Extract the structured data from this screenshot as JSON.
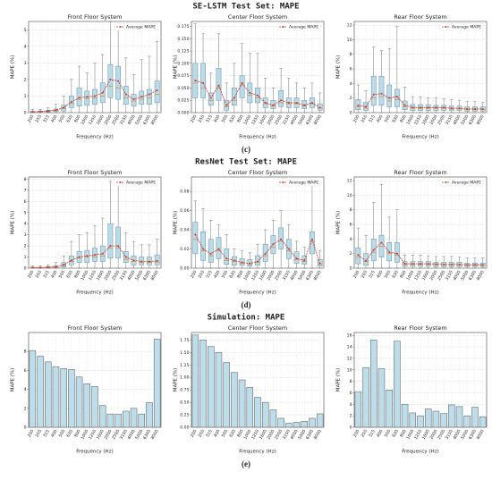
{
  "figure": {
    "rows": [
      {
        "title": "SE-LSTM Test Set: MAPE",
        "caption": "(c)"
      },
      {
        "title": "ResNet Test Set: MAPE",
        "caption": "(d)"
      },
      {
        "title": "Simulation: MAPE",
        "caption": "(e)"
      }
    ]
  },
  "chart_data": [
    {
      "type": "box",
      "title": "Front Floor System",
      "xlabel": "Frequency (Hz)",
      "ylabel": "MAPE (%)",
      "grid": true,
      "legend": "upper right",
      "box_color": "#b9dcea",
      "median_color": "#d9822b",
      "categories": [
        "200",
        "250",
        "315",
        "400",
        "500",
        "630",
        "800",
        "1000",
        "1250",
        "1600",
        "2000",
        "2500",
        "3150",
        "4000",
        "5000",
        "6300",
        "8000"
      ],
      "ylim": [
        0,
        5.5
      ],
      "yticks": [
        0,
        1,
        2,
        3,
        4,
        5
      ],
      "boxes": {
        "low": [
          0,
          0,
          0,
          0,
          0,
          0,
          0,
          0,
          0,
          0,
          0,
          0,
          0,
          0,
          0,
          0,
          0
        ],
        "q1": [
          0.02,
          0.02,
          0.04,
          0.06,
          0.1,
          0.3,
          0.4,
          0.45,
          0.5,
          0.6,
          0.9,
          0.8,
          0.5,
          0.4,
          0.5,
          0.5,
          0.6
        ],
        "median": [
          0.04,
          0.05,
          0.08,
          0.12,
          0.25,
          0.55,
          0.8,
          0.85,
          0.9,
          1.0,
          1.6,
          1.5,
          0.9,
          0.7,
          0.8,
          0.9,
          1.1
        ],
        "q3": [
          0.08,
          0.09,
          0.15,
          0.22,
          0.45,
          1.0,
          1.5,
          1.3,
          1.4,
          1.8,
          2.9,
          2.8,
          1.6,
          1.1,
          1.3,
          1.4,
          1.9
        ],
        "high": [
          0.2,
          0.2,
          0.3,
          0.5,
          1.0,
          2.0,
          2.8,
          2.4,
          3.0,
          3.5,
          5.5,
          5.2,
          3.3,
          2.3,
          3.2,
          3.4,
          4.3
        ]
      },
      "average": {
        "name": "Average MAPE",
        "color": "#c8372d",
        "values": [
          0.05,
          0.06,
          0.1,
          0.15,
          0.3,
          0.65,
          0.9,
          0.95,
          1.0,
          1.2,
          2.0,
          1.9,
          1.1,
          0.8,
          0.95,
          1.1,
          1.35
        ]
      }
    },
    {
      "type": "box",
      "title": "Center Floor System",
      "xlabel": "Frequency (Hz)",
      "ylabel": "MAPE (%)",
      "grid": true,
      "legend": "upper right",
      "box_color": "#b9dcea",
      "median_color": "#d9822b",
      "categories": [
        "200",
        "250",
        "315",
        "400",
        "500",
        "630",
        "800",
        "1000",
        "1250",
        "1600",
        "2000",
        "2500",
        "3150",
        "4000",
        "5000",
        "6300",
        "8000"
      ],
      "ylim": [
        0,
        0.185
      ],
      "yticks": [
        {
          "value": 0,
          "label": "0.000"
        },
        0.025,
        {
          "value": 0.05,
          "label": "0.050"
        },
        0.075,
        {
          "value": 0.1,
          "label": "0.100"
        },
        0.125,
        {
          "value": 0.15,
          "label": "0.150"
        },
        0.175
      ],
      "boxes": {
        "low": [
          0,
          0,
          0,
          0,
          0,
          0,
          0,
          0,
          0,
          0,
          0,
          0,
          0,
          0,
          0,
          0,
          0
        ],
        "q1": [
          0.03,
          0.03,
          0.015,
          0.025,
          0.005,
          0.015,
          0.03,
          0.02,
          0.02,
          0.01,
          0.008,
          0.012,
          0.01,
          0.01,
          0.008,
          0.01,
          0.005
        ],
        "median": [
          0.06,
          0.05,
          0.025,
          0.05,
          0.012,
          0.025,
          0.055,
          0.035,
          0.03,
          0.018,
          0.013,
          0.02,
          0.018,
          0.018,
          0.013,
          0.018,
          0.009
        ],
        "q3": [
          0.1,
          0.1,
          0.04,
          0.09,
          0.025,
          0.05,
          0.075,
          0.06,
          0.05,
          0.03,
          0.025,
          0.045,
          0.03,
          0.03,
          0.025,
          0.03,
          0.018
        ],
        "high": [
          0.18,
          0.16,
          0.08,
          0.16,
          0.06,
          0.1,
          0.14,
          0.12,
          0.12,
          0.07,
          0.05,
          0.09,
          0.07,
          0.06,
          0.05,
          0.06,
          0.04
        ]
      },
      "average": {
        "name": "Average MAPE",
        "color": "#c8372d",
        "values": [
          0.065,
          0.06,
          0.03,
          0.055,
          0.015,
          0.03,
          0.06,
          0.04,
          0.035,
          0.02,
          0.015,
          0.025,
          0.02,
          0.02,
          0.015,
          0.02,
          0.01
        ]
      }
    },
    {
      "type": "box",
      "title": "Rear Floor System",
      "xlabel": "Frequency (Hz)",
      "ylabel": "MAPE (%)",
      "grid": true,
      "legend": "upper right",
      "box_color": "#b9dcea",
      "median_color": "#d9822b",
      "categories": [
        "200",
        "250",
        "315",
        "400",
        "500",
        "630",
        "800",
        "1000",
        "1250",
        "1600",
        "2000",
        "2500",
        "3150",
        "4000",
        "5000",
        "6300",
        "8000"
      ],
      "ylim": [
        0,
        12.5
      ],
      "yticks": [
        0,
        2,
        4,
        6,
        8,
        10,
        12
      ],
      "boxes": {
        "low": [
          0,
          0,
          0,
          0,
          0,
          0,
          0,
          0,
          0,
          0,
          0,
          0,
          0,
          0,
          0,
          0,
          0
        ],
        "q1": [
          0.4,
          0.3,
          1.0,
          1.0,
          0.8,
          0.8,
          0.4,
          0.3,
          0.3,
          0.3,
          0.3,
          0.3,
          0.3,
          0.3,
          0.2,
          0.2,
          0.2
        ],
        "median": [
          0.8,
          0.6,
          2.0,
          2.2,
          1.6,
          1.8,
          0.8,
          0.6,
          0.6,
          0.6,
          0.6,
          0.6,
          0.5,
          0.5,
          0.4,
          0.4,
          0.4
        ],
        "q3": [
          1.8,
          1.4,
          5.0,
          5.0,
          3.8,
          3.2,
          1.6,
          1.1,
          1.1,
          1.1,
          1.0,
          1.0,
          0.9,
          0.9,
          0.8,
          0.8,
          0.8
        ],
        "high": [
          3.8,
          3.0,
          9.0,
          8.5,
          8.8,
          11.8,
          3.5,
          2.2,
          2.2,
          2.0,
          2.0,
          1.9,
          1.8,
          1.7,
          1.5,
          1.5,
          1.4
        ]
      },
      "average": {
        "name": "Average MAPE",
        "color": "#c8372d",
        "values": [
          1.0,
          0.8,
          2.5,
          2.6,
          2.0,
          2.2,
          1.0,
          0.7,
          0.7,
          0.7,
          0.7,
          0.7,
          0.6,
          0.6,
          0.5,
          0.5,
          0.5
        ]
      }
    },
    {
      "type": "box",
      "title": "Front Floor System",
      "xlabel": "Frequency (Hz)",
      "ylabel": "MAPE (%)",
      "grid": true,
      "legend": "upper right",
      "box_color": "#b9dcea",
      "median_color": "#d9822b",
      "categories": [
        "200",
        "250",
        "315",
        "400",
        "500",
        "630",
        "800",
        "1000",
        "1250",
        "1600",
        "2000",
        "2500",
        "3150",
        "4000",
        "5000",
        "6300",
        "8000"
      ],
      "ylim": [
        0,
        8.2
      ],
      "yticks": [
        0,
        1,
        2,
        3,
        4,
        5,
        6,
        7,
        8
      ],
      "boxes": {
        "low": [
          0,
          0,
          0,
          0,
          0,
          0,
          0,
          0,
          0,
          0,
          0,
          0,
          0,
          0,
          0,
          0,
          0
        ],
        "q1": [
          0.02,
          0.02,
          0.03,
          0.05,
          0.1,
          0.3,
          0.5,
          0.5,
          0.6,
          0.6,
          0.9,
          0.9,
          0.5,
          0.3,
          0.3,
          0.3,
          0.3
        ],
        "median": [
          0.04,
          0.04,
          0.07,
          0.1,
          0.25,
          0.6,
          0.9,
          1.0,
          1.0,
          1.1,
          1.8,
          1.8,
          0.8,
          0.6,
          0.5,
          0.5,
          0.55
        ],
        "q3": [
          0.08,
          0.08,
          0.13,
          0.2,
          0.5,
          1.1,
          1.5,
          1.6,
          1.8,
          2.0,
          4.0,
          3.7,
          1.5,
          1.1,
          1.0,
          1.0,
          1.2
        ],
        "high": [
          0.2,
          0.2,
          0.3,
          0.5,
          1.1,
          2.4,
          3.0,
          3.2,
          3.8,
          4.5,
          7.8,
          7.5,
          3.2,
          2.4,
          2.1,
          2.1,
          2.6
        ]
      },
      "average": {
        "name": "Average MAPE",
        "color": "#c8372d",
        "values": [
          0.05,
          0.05,
          0.08,
          0.12,
          0.3,
          0.7,
          1.0,
          1.1,
          1.2,
          1.3,
          2.0,
          2.0,
          1.0,
          0.7,
          0.6,
          0.6,
          0.65
        ]
      }
    },
    {
      "type": "box",
      "title": "Center Floor System",
      "xlabel": "Frequency (Hz)",
      "ylabel": "MAPE (%)",
      "grid": true,
      "legend": "upper right",
      "box_color": "#b9dcea",
      "median_color": "#d9822b",
      "categories": [
        "200",
        "250",
        "315",
        "400",
        "500",
        "630",
        "800",
        "1000",
        "1250",
        "1600",
        "2000",
        "2500",
        "3150",
        "4000",
        "5000",
        "6300",
        "8000"
      ],
      "ylim": [
        0,
        0.095
      ],
      "yticks": [
        {
          "value": 0,
          "label": "0.00"
        },
        0.02,
        0.04,
        0.06,
        0.08
      ],
      "boxes": {
        "low": [
          0,
          0,
          0,
          0,
          0,
          0,
          0,
          0,
          0,
          0,
          0,
          0,
          0,
          0,
          0,
          0,
          0
        ],
        "q1": [
          0.015,
          0.008,
          0.006,
          0.01,
          0.004,
          0.003,
          0.003,
          0.002,
          0.003,
          0.007,
          0.015,
          0.02,
          0.01,
          0.005,
          0.004,
          0.015,
          0.002
        ],
        "median": [
          0.03,
          0.018,
          0.013,
          0.018,
          0.008,
          0.007,
          0.005,
          0.004,
          0.006,
          0.013,
          0.022,
          0.028,
          0.018,
          0.009,
          0.007,
          0.028,
          0.004
        ],
        "q3": [
          0.048,
          0.038,
          0.03,
          0.032,
          0.02,
          0.012,
          0.01,
          0.009,
          0.013,
          0.025,
          0.034,
          0.042,
          0.03,
          0.017,
          0.013,
          0.038,
          0.009
        ],
        "high": [
          0.07,
          0.062,
          0.05,
          0.045,
          0.035,
          0.02,
          0.018,
          0.016,
          0.025,
          0.04,
          0.05,
          0.06,
          0.045,
          0.028,
          0.022,
          0.09,
          0.018
        ]
      },
      "average": {
        "name": "Average MAPE",
        "color": "#c8372d",
        "values": [
          0.035,
          0.02,
          0.015,
          0.02,
          0.01,
          0.008,
          0.006,
          0.005,
          0.007,
          0.015,
          0.025,
          0.03,
          0.02,
          0.01,
          0.008,
          0.03,
          0.005
        ]
      }
    },
    {
      "type": "box",
      "title": "Rear Floor System",
      "xlabel": "Frequency (Hz)",
      "ylabel": "MAPE (%)",
      "grid": true,
      "legend": "upper right",
      "box_color": "#b9dcea",
      "median_color": "#d9822b",
      "categories": [
        "200",
        "250",
        "315",
        "400",
        "500",
        "630",
        "800",
        "1000",
        "1250",
        "1600",
        "2000",
        "2500",
        "3150",
        "4000",
        "5000",
        "6300",
        "8000"
      ],
      "ylim": [
        0,
        12.5
      ],
      "yticks": [
        0,
        2,
        4,
        6,
        8,
        10,
        12
      ],
      "boxes": {
        "low": [
          0,
          0,
          0,
          0,
          0,
          0,
          0,
          0,
          0,
          0,
          0,
          0,
          0,
          0,
          0,
          0,
          0
        ],
        "q1": [
          0.6,
          0.4,
          1.0,
          1.5,
          1.0,
          0.8,
          0.25,
          0.25,
          0.25,
          0.25,
          0.2,
          0.2,
          0.2,
          0.2,
          0.2,
          0.2,
          0.2
        ],
        "median": [
          1.5,
          0.9,
          2.2,
          3.0,
          2.0,
          1.8,
          0.5,
          0.5,
          0.5,
          0.5,
          0.45,
          0.45,
          0.45,
          0.4,
          0.4,
          0.4,
          0.4
        ],
        "q3": [
          2.8,
          2.0,
          4.0,
          4.5,
          3.5,
          3.5,
          0.9,
          0.9,
          0.9,
          0.9,
          0.8,
          0.8,
          0.8,
          0.8,
          0.7,
          0.7,
          0.7
        ],
        "high": [
          5.5,
          4.5,
          9.0,
          11.5,
          7.0,
          8.0,
          1.8,
          1.8,
          1.8,
          1.7,
          1.6,
          1.6,
          1.6,
          1.5,
          1.4,
          1.4,
          1.4
        ]
      },
      "average": {
        "name": "Average MAPE",
        "color": "#c8372d",
        "values": [
          1.8,
          1.0,
          2.5,
          3.5,
          2.2,
          2.0,
          0.6,
          0.6,
          0.6,
          0.6,
          0.55,
          0.5,
          0.5,
          0.5,
          0.45,
          0.45,
          0.45
        ]
      }
    },
    {
      "type": "bar",
      "title": "Front Floor System",
      "xlabel": "Frequency (Hz)",
      "ylabel": "MAPE (%)",
      "grid": true,
      "color": "#bcdde9",
      "categories": [
        "200",
        "250",
        "315",
        "400",
        "500",
        "630",
        "800",
        "1000",
        "1250",
        "1600",
        "2000",
        "2500",
        "3150",
        "4000",
        "5000",
        "6300",
        "8000"
      ],
      "ylim": [
        0,
        10
      ],
      "yticks": [
        0,
        2,
        4,
        6,
        8
      ],
      "values": [
        8.1,
        7.5,
        6.9,
        6.4,
        6.2,
        6.1,
        5.3,
        4.6,
        4.3,
        2.3,
        1.4,
        1.4,
        1.7,
        2.0,
        1.4,
        2.6,
        9.3
      ]
    },
    {
      "type": "bar",
      "title": "Center Floor System",
      "xlabel": "Frequency (Hz)",
      "ylabel": "MAPE (%)",
      "grid": true,
      "color": "#bcdde9",
      "categories": [
        "200",
        "250",
        "315",
        "400",
        "500",
        "630",
        "800",
        "1000",
        "1250",
        "1600",
        "2000",
        "2500",
        "3150",
        "4000",
        "5000",
        "6300",
        "8000"
      ],
      "ylim": [
        0,
        1.9
      ],
      "yticks": [
        {
          "value": 0,
          "label": "0.00"
        },
        0.25,
        {
          "value": 0.5,
          "label": "0.50"
        },
        0.75,
        {
          "value": 1,
          "label": "1.00"
        },
        1.25,
        {
          "value": 1.5,
          "label": "1.50"
        },
        1.75
      ],
      "values": [
        1.85,
        1.75,
        1.62,
        1.5,
        1.3,
        1.1,
        0.95,
        0.8,
        0.6,
        0.5,
        0.35,
        0.18,
        0.08,
        0.1,
        0.12,
        0.18,
        0.27
      ]
    },
    {
      "type": "bar",
      "title": "Rear Floor System",
      "xlabel": "Frequency (Hz)",
      "ylabel": "MAPE (%)",
      "grid": true,
      "color": "#bcdde9",
      "categories": [
        "200",
        "250",
        "315",
        "400",
        "500",
        "630",
        "800",
        "1000",
        "1250",
        "1600",
        "2000",
        "2500",
        "3150",
        "4000",
        "5000",
        "6300",
        "8000"
      ],
      "ylim": [
        0,
        16.5
      ],
      "yticks": [
        0,
        2,
        4,
        6,
        8,
        10,
        12,
        14,
        16
      ],
      "values": [
        6.2,
        10.4,
        15.2,
        10.2,
        6.5,
        15.0,
        4.0,
        2.5,
        2.0,
        3.2,
        2.8,
        2.4,
        3.9,
        3.6,
        2.0,
        3.5,
        1.8
      ]
    }
  ]
}
